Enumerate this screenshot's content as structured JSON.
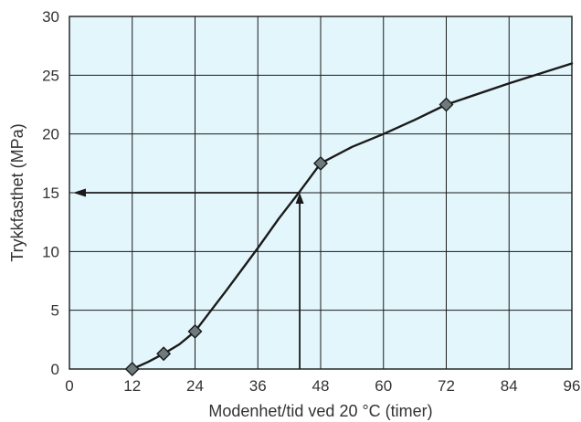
{
  "chart_data": {
    "type": "line",
    "xlabel": "Modenhet/tid ved 20 °C (timer)",
    "ylabel": "Trykkfasthet (MPa)",
    "xlim": [
      0,
      96
    ],
    "ylim": [
      0,
      30
    ],
    "x_ticks": [
      0,
      12,
      24,
      36,
      48,
      60,
      72,
      84,
      96
    ],
    "y_ticks": [
      0,
      5,
      10,
      15,
      20,
      25,
      30
    ],
    "grid": true,
    "legend": "none",
    "series": [
      {
        "marker": "diamond",
        "curve": [
          [
            12,
            0
          ],
          [
            15,
            0.6
          ],
          [
            18,
            1.3
          ],
          [
            21,
            2.1
          ],
          [
            24,
            3.2
          ],
          [
            30,
            6.7
          ],
          [
            36,
            10.3
          ],
          [
            40,
            12.8
          ],
          [
            44,
            15.1
          ],
          [
            48,
            17.5
          ],
          [
            54,
            18.9
          ],
          [
            60,
            20.0
          ],
          [
            66,
            21.2
          ],
          [
            72,
            22.5
          ],
          [
            84,
            24.3
          ],
          [
            96,
            26.0
          ]
        ],
        "markers": [
          [
            12,
            0
          ],
          [
            18,
            1.3
          ],
          [
            24,
            3.2
          ],
          [
            48,
            17.5
          ],
          [
            72,
            22.5
          ]
        ]
      }
    ],
    "annotations": [
      {
        "type": "vertical-arrow",
        "x": 44,
        "from_y": 0,
        "to_y": 15
      },
      {
        "type": "horizontal-arrow",
        "y": 15,
        "from_x": 44,
        "to_x": 0
      }
    ],
    "colors": {
      "plot_background": "#e3f6fc",
      "grid": "#1a1a1a",
      "line": "#1a1a1a",
      "marker_fill": "#6e7a7c",
      "text": "#333333"
    }
  }
}
